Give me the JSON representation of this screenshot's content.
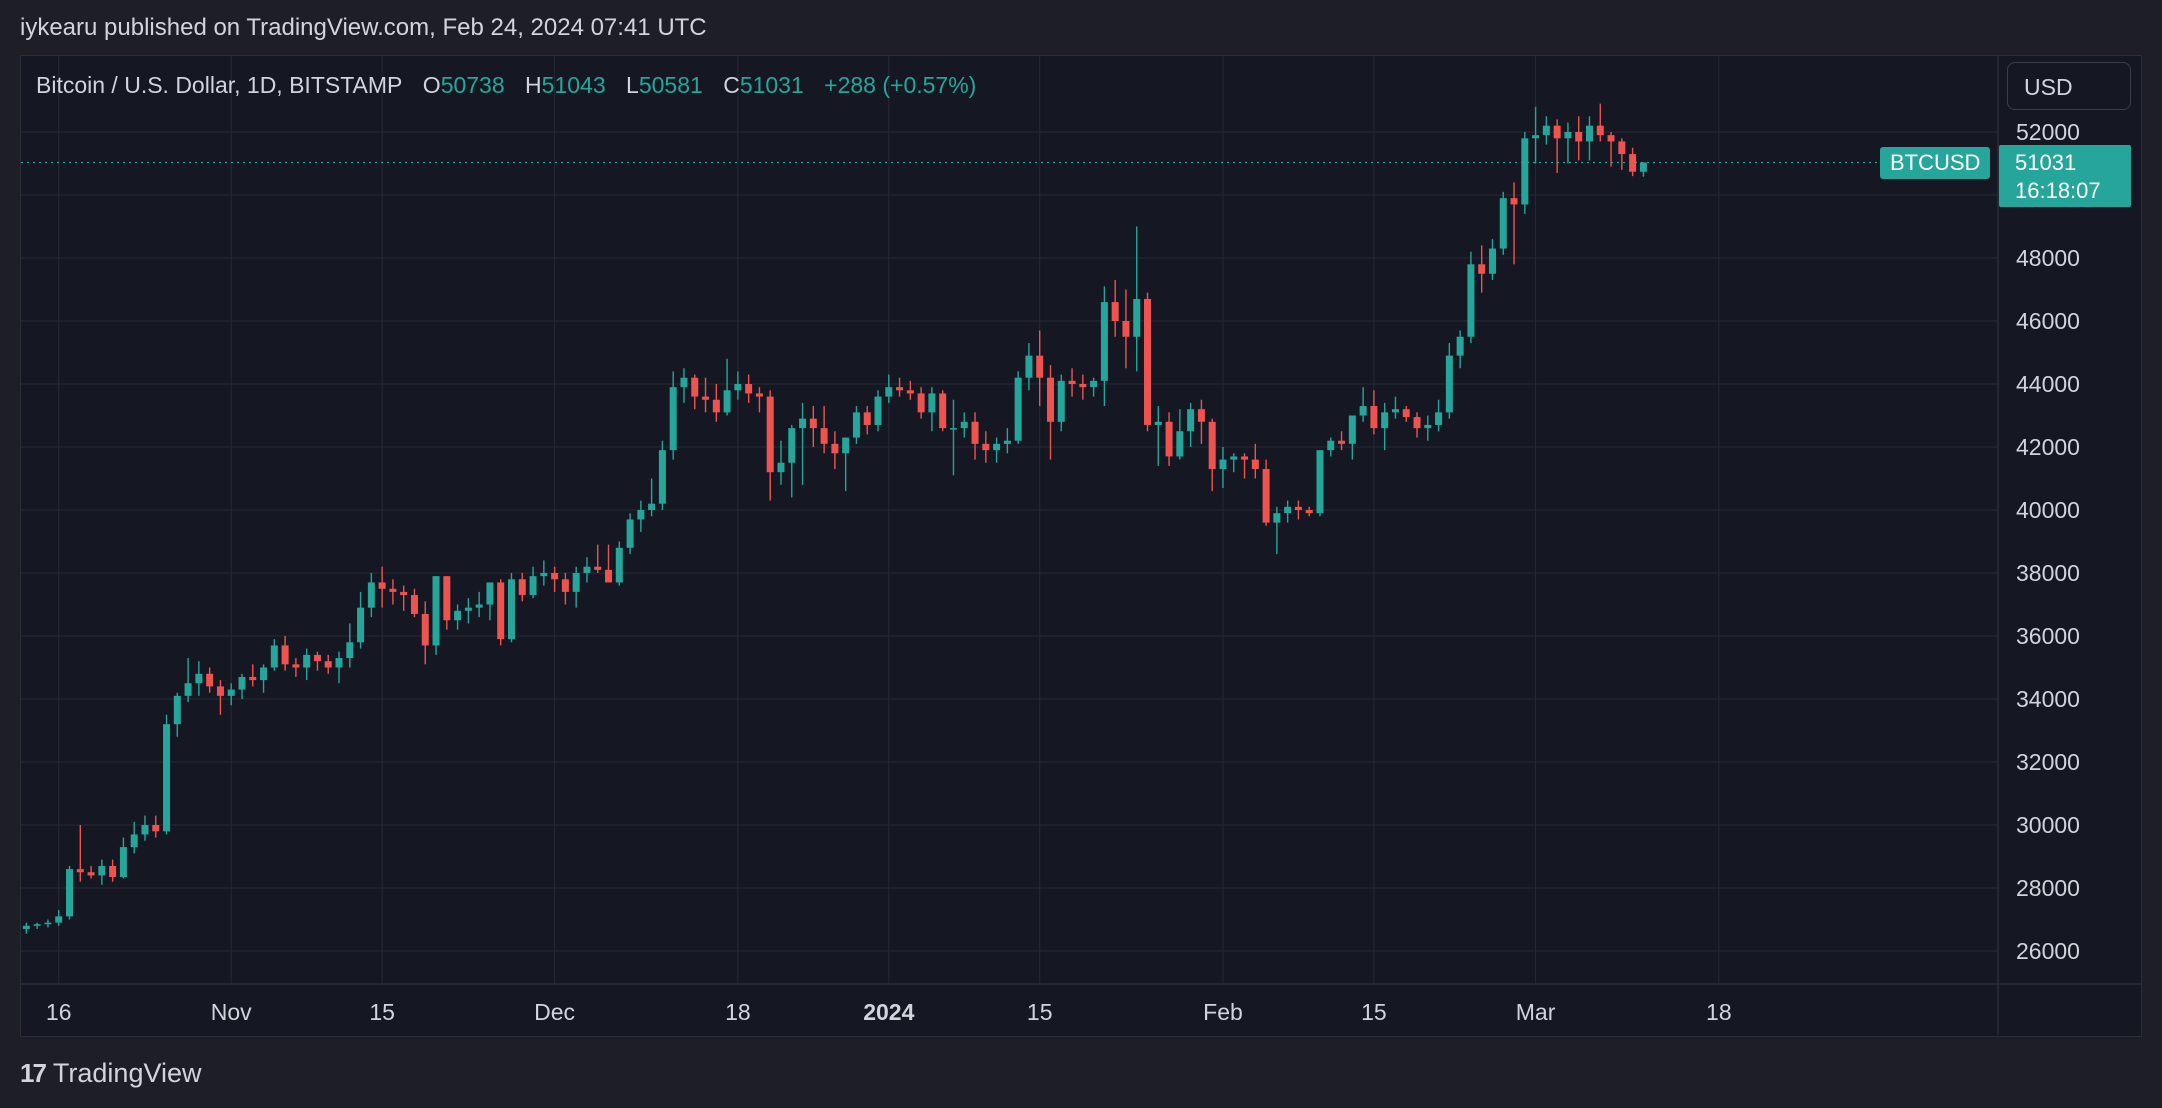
{
  "header": {
    "publisher_line": "iykearu published on TradingView.com, Feb 24, 2024 07:41 UTC"
  },
  "legend": {
    "symbol": "Bitcoin / U.S. Dollar, 1D, BITSTAMP",
    "o_label": "O",
    "o_value": "50738",
    "h_label": "H",
    "h_value": "51043",
    "l_label": "L",
    "l_value": "50581",
    "c_label": "C",
    "c_value": "51031",
    "change": "+288 (+0.57%)"
  },
  "currency_button": {
    "label": "USD"
  },
  "price_tag": {
    "ticker": "BTCUSD",
    "price": "51031",
    "countdown": "16:18:07"
  },
  "footer": {
    "brand": "TradingView",
    "logo_icon": "tradingview-logo-icon"
  },
  "colors": {
    "up": "#26a69a",
    "down": "#ef5350",
    "background": "#151823",
    "grid": "#262a35"
  },
  "chart_data": {
    "type": "candlestick",
    "symbol": "BTCUSD",
    "interval": "1D",
    "ylim": [
      25000,
      53500
    ],
    "y_ticks": [
      26000,
      28000,
      30000,
      32000,
      34000,
      36000,
      38000,
      40000,
      42000,
      44000,
      46000,
      48000,
      50000,
      52000
    ],
    "y_tick_labels": [
      "26000",
      "28000",
      "30000",
      "32000",
      "34000",
      "36000",
      "38000",
      "40000",
      "42000",
      "44000",
      "46000",
      "48000",
      "",
      "52000"
    ],
    "x_start_date": "2023-10-13",
    "x_ticks": [
      {
        "date": "2023-10-16",
        "label": "16",
        "bold": false
      },
      {
        "date": "2023-11-01",
        "label": "Nov",
        "bold": false
      },
      {
        "date": "2023-11-15",
        "label": "15",
        "bold": false
      },
      {
        "date": "2023-12-01",
        "label": "Dec",
        "bold": false
      },
      {
        "date": "2023-12-18",
        "label": "18",
        "bold": false
      },
      {
        "date": "2024-01-01",
        "label": "2024",
        "bold": true
      },
      {
        "date": "2024-01-15",
        "label": "15",
        "bold": false
      },
      {
        "date": "2024-02-01",
        "label": "Feb",
        "bold": false
      },
      {
        "date": "2024-02-15",
        "label": "15",
        "bold": false
      },
      {
        "date": "2024-03-01",
        "label": "Mar",
        "bold": false
      },
      {
        "date": "2024-03-18",
        "label": "18",
        "bold": false
      }
    ],
    "last_price_line": 51031,
    "candles": [
      [
        26700,
        26900,
        26550,
        26800
      ],
      [
        26800,
        26900,
        26700,
        26850
      ],
      [
        26850,
        27000,
        26750,
        26900
      ],
      [
        26900,
        27300,
        26800,
        27100
      ],
      [
        27100,
        28700,
        27000,
        28600
      ],
      [
        28600,
        30000,
        28200,
        28500
      ],
      [
        28500,
        28700,
        28300,
        28400
      ],
      [
        28400,
        28900,
        28100,
        28700
      ],
      [
        28700,
        28900,
        28200,
        28350
      ],
      [
        28350,
        29600,
        28300,
        29300
      ],
      [
        29300,
        30100,
        29100,
        29700
      ],
      [
        29700,
        30300,
        29500,
        30000
      ],
      [
        30000,
        30300,
        29600,
        29800
      ],
      [
        29800,
        33500,
        29700,
        33200
      ],
      [
        33200,
        34200,
        32800,
        34100
      ],
      [
        34100,
        35300,
        33900,
        34500
      ],
      [
        34500,
        35200,
        34100,
        34800
      ],
      [
        34800,
        35000,
        34200,
        34400
      ],
      [
        34400,
        34600,
        33500,
        34100
      ],
      [
        34100,
        34500,
        33800,
        34300
      ],
      [
        34300,
        34800,
        34000,
        34700
      ],
      [
        34700,
        35100,
        34400,
        34600
      ],
      [
        34600,
        35100,
        34200,
        35000
      ],
      [
        35000,
        35900,
        34900,
        35700
      ],
      [
        35700,
        36000,
        34900,
        35100
      ],
      [
        35100,
        35300,
        34700,
        35000
      ],
      [
        35000,
        35600,
        34600,
        35400
      ],
      [
        35400,
        35500,
        34900,
        35200
      ],
      [
        35200,
        35400,
        34800,
        35000
      ],
      [
        35000,
        35500,
        34500,
        35300
      ],
      [
        35300,
        36400,
        35000,
        35800
      ],
      [
        35800,
        37400,
        35600,
        36900
      ],
      [
        36900,
        38000,
        36600,
        37700
      ],
      [
        37700,
        38200,
        36900,
        37500
      ],
      [
        37500,
        37800,
        37000,
        37400
      ],
      [
        37400,
        37600,
        36800,
        37300
      ],
      [
        37300,
        37500,
        36600,
        36700
      ],
      [
        36700,
        37100,
        35100,
        35700
      ],
      [
        35700,
        37900,
        35400,
        37900
      ],
      [
        37900,
        37900,
        36200,
        36500
      ],
      [
        36500,
        37000,
        36200,
        36800
      ],
      [
        36800,
        37200,
        36400,
        36900
      ],
      [
        36900,
        37400,
        36600,
        37000
      ],
      [
        37000,
        37600,
        36500,
        37700
      ],
      [
        37700,
        37800,
        35700,
        35900
      ],
      [
        35900,
        38000,
        35800,
        37800
      ],
      [
        37800,
        38000,
        37100,
        37300
      ],
      [
        37300,
        38200,
        37200,
        37900
      ],
      [
        37900,
        38400,
        37600,
        38000
      ],
      [
        38000,
        38200,
        37400,
        37800
      ],
      [
        37800,
        38000,
        37000,
        37400
      ],
      [
        37400,
        38200,
        36900,
        38000
      ],
      [
        38000,
        38500,
        37700,
        38200
      ],
      [
        38200,
        38900,
        38000,
        38100
      ],
      [
        38100,
        38900,
        37700,
        37700
      ],
      [
        37700,
        39000,
        37600,
        38800
      ],
      [
        38800,
        39900,
        38600,
        39700
      ],
      [
        39700,
        40300,
        39300,
        40000
      ],
      [
        40000,
        41000,
        39800,
        40200
      ],
      [
        40200,
        42200,
        40000,
        41900
      ],
      [
        41900,
        44400,
        41600,
        43900
      ],
      [
        43900,
        44500,
        43400,
        44200
      ],
      [
        44200,
        44300,
        43200,
        43600
      ],
      [
        43600,
        44200,
        43100,
        43500
      ],
      [
        43500,
        44000,
        42800,
        43100
      ],
      [
        43100,
        44800,
        43000,
        43800
      ],
      [
        43800,
        44400,
        43500,
        44000
      ],
      [
        44000,
        44300,
        43400,
        43700
      ],
      [
        43700,
        43900,
        43100,
        43600
      ],
      [
        43600,
        43800,
        40300,
        41200
      ],
      [
        41200,
        42200,
        40800,
        41500
      ],
      [
        41500,
        42700,
        40400,
        42600
      ],
      [
        42600,
        43400,
        40800,
        42900
      ],
      [
        42900,
        43300,
        42000,
        42600
      ],
      [
        42600,
        43300,
        41800,
        42100
      ],
      [
        42100,
        42500,
        41300,
        41800
      ],
      [
        41800,
        42300,
        40600,
        42300
      ],
      [
        42300,
        43300,
        42100,
        43100
      ],
      [
        43100,
        43300,
        42400,
        42700
      ],
      [
        42700,
        43800,
        42500,
        43600
      ],
      [
        43600,
        44300,
        43400,
        43900
      ],
      [
        43900,
        44200,
        43600,
        43800
      ],
      [
        43800,
        44100,
        43500,
        43700
      ],
      [
        43700,
        43900,
        42900,
        43100
      ],
      [
        43100,
        43900,
        42500,
        43700
      ],
      [
        43700,
        43800,
        42500,
        42600
      ],
      [
        42600,
        43500,
        41100,
        42600
      ],
      [
        42600,
        43100,
        42300,
        42800
      ],
      [
        42800,
        43100,
        41600,
        42100
      ],
      [
        42100,
        42500,
        41500,
        41900
      ],
      [
        41900,
        42300,
        41500,
        42100
      ],
      [
        42100,
        42600,
        41800,
        42200
      ],
      [
        42200,
        44400,
        42100,
        44200
      ],
      [
        44200,
        45300,
        43800,
        44900
      ],
      [
        44900,
        45700,
        43300,
        44200
      ],
      [
        44200,
        44600,
        41600,
        42800
      ],
      [
        42800,
        44300,
        42500,
        44100
      ],
      [
        44100,
        44500,
        43600,
        44000
      ],
      [
        44000,
        44300,
        43500,
        43900
      ],
      [
        43900,
        44200,
        43600,
        44100
      ],
      [
        44100,
        47100,
        43300,
        46600
      ],
      [
        46600,
        47300,
        45500,
        46000
      ],
      [
        46000,
        47000,
        44500,
        45500
      ],
      [
        45500,
        49000,
        44400,
        46700
      ],
      [
        46700,
        46900,
        42500,
        42700
      ],
      [
        42700,
        43300,
        41400,
        42800
      ],
      [
        42800,
        43100,
        41400,
        41700
      ],
      [
        41700,
        43200,
        41600,
        42500
      ],
      [
        42500,
        43400,
        42000,
        43200
      ],
      [
        43200,
        43500,
        42100,
        42800
      ],
      [
        42800,
        42900,
        40600,
        41300
      ],
      [
        41300,
        42000,
        40700,
        41600
      ],
      [
        41600,
        41800,
        41200,
        41700
      ],
      [
        41700,
        41800,
        41000,
        41600
      ],
      [
        41600,
        42100,
        41000,
        41300
      ],
      [
        41300,
        41600,
        39500,
        39600
      ],
      [
        39600,
        40100,
        38600,
        39900
      ],
      [
        39900,
        40300,
        39600,
        40100
      ],
      [
        40100,
        40300,
        39700,
        40000
      ],
      [
        40000,
        40100,
        39800,
        39900
      ],
      [
        39900,
        41900,
        39800,
        41900
      ],
      [
        41900,
        42300,
        41700,
        42200
      ],
      [
        42200,
        42500,
        41900,
        42100
      ],
      [
        42100,
        43000,
        41600,
        43000
      ],
      [
        43000,
        43900,
        42800,
        43300
      ],
      [
        43300,
        43800,
        42400,
        42600
      ],
      [
        42600,
        43400,
        41900,
        43100
      ],
      [
        43100,
        43600,
        42900,
        43200
      ],
      [
        43200,
        43300,
        42800,
        42950
      ],
      [
        42950,
        43100,
        42300,
        42600
      ],
      [
        42600,
        43000,
        42200,
        42700
      ],
      [
        42700,
        43500,
        42500,
        43100
      ],
      [
        43100,
        45300,
        42900,
        44900
      ],
      [
        44900,
        45700,
        44500,
        45500
      ],
      [
        45500,
        48200,
        45300,
        47800
      ],
      [
        47800,
        48400,
        46900,
        47500
      ],
      [
        47500,
        48600,
        47300,
        48300
      ],
      [
        48300,
        50100,
        48100,
        49900
      ],
      [
        49900,
        50400,
        47800,
        49700
      ],
      [
        49700,
        52000,
        49400,
        51800
      ],
      [
        51800,
        52800,
        51000,
        51900
      ],
      [
        51900,
        52500,
        51600,
        52200
      ],
      [
        52200,
        52400,
        50700,
        51800
      ],
      [
        51800,
        52300,
        51000,
        52000
      ],
      [
        52000,
        52500,
        51100,
        51700
      ],
      [
        51700,
        52500,
        51100,
        52200
      ],
      [
        52200,
        52900,
        51700,
        51900
      ],
      [
        51900,
        52000,
        50900,
        51700
      ],
      [
        51700,
        51800,
        50800,
        51300
      ],
      [
        51300,
        51500,
        50600,
        50738
      ],
      [
        50738,
        51043,
        50581,
        51031
      ]
    ]
  }
}
